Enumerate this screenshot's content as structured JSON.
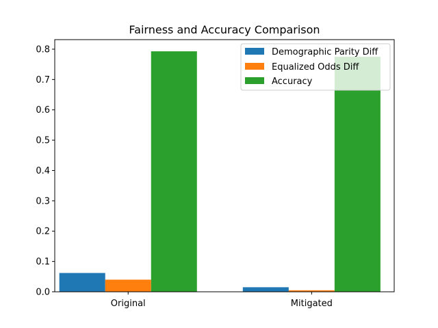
{
  "chart_data": {
    "type": "bar",
    "title": "Fairness and Accuracy Comparison",
    "xlabel": "",
    "ylabel": "",
    "categories": [
      "Original",
      "Mitigated"
    ],
    "series": [
      {
        "name": "Demographic Parity Diff",
        "values": [
          0.062,
          0.015
        ],
        "color": "#1f77b4"
      },
      {
        "name": "Equalized Odds Diff",
        "values": [
          0.04,
          0.005
        ],
        "color": "#ff7f0e"
      },
      {
        "name": "Accuracy",
        "values": [
          0.793,
          0.775
        ],
        "color": "#2ca02c"
      }
    ],
    "ylim": [
      0,
      0.8315
    ],
    "yticks": [
      "0.0",
      "0.1",
      "0.2",
      "0.3",
      "0.4",
      "0.5",
      "0.6",
      "0.7",
      "0.8"
    ],
    "legend_position": "top-right",
    "grid": false
  }
}
